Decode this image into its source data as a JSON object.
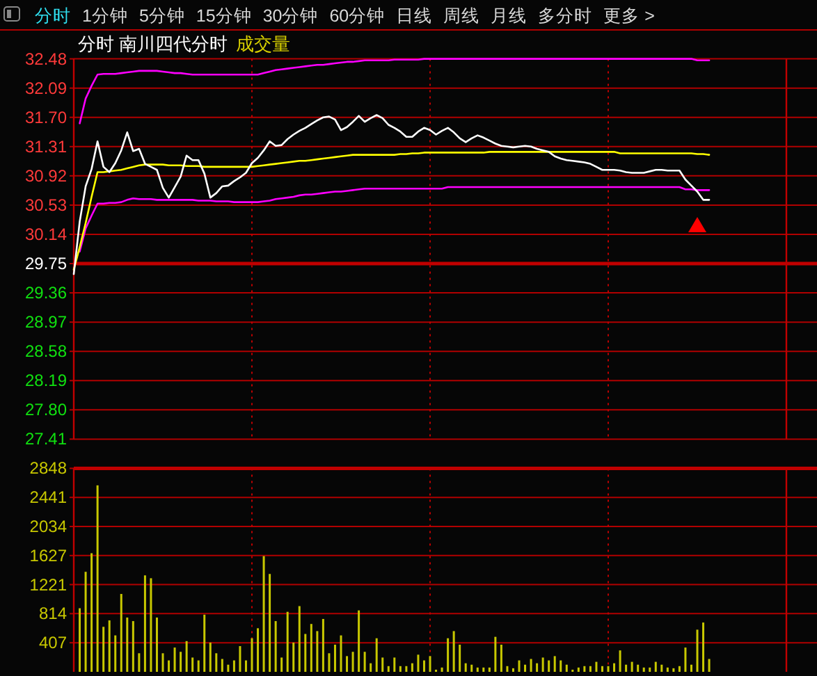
{
  "chart_data": [
    {
      "type": "line",
      "title": "分时 南川四代分时",
      "subtitle": "成交量",
      "annotations": [
        "分时",
        "1分钟",
        "5分钟",
        "15分钟",
        "30分钟",
        "60分钟",
        "日线",
        "周线",
        "月线",
        "多分时",
        "更多 >"
      ],
      "categories": [
        null,
        null,
        null,
        null,
        null,
        null,
        null,
        null,
        null,
        null,
        null,
        null,
        null,
        null,
        null,
        null,
        null,
        null,
        null,
        null,
        null,
        null,
        null,
        null,
        null,
        null,
        null,
        null,
        null,
        null,
        null,
        null,
        null,
        null,
        null,
        null,
        null,
        null,
        null,
        null,
        null,
        null,
        null,
        null,
        null,
        null,
        null,
        null,
        null,
        null,
        null,
        null,
        null,
        null,
        null,
        null,
        null,
        null,
        null,
        null,
        null,
        null,
        null,
        null,
        null,
        null,
        null,
        null,
        null,
        null,
        null,
        null,
        null,
        null,
        null,
        null,
        null,
        null,
        null,
        null,
        null,
        null,
        null,
        null,
        null,
        null,
        null,
        null,
        null,
        null,
        null,
        null,
        null,
        null,
        null,
        null,
        null,
        null,
        null,
        null,
        null,
        null,
        null,
        null,
        null,
        null,
        null,
        null,
        null,
        null,
        null,
        null,
        null,
        null,
        null,
        null,
        null,
        null,
        null,
        null,
        null
      ],
      "ylim": [
        27.41,
        32.48
      ],
      "yticks": [
        27.41,
        {
          "value": 27.8,
          "label": "27.80"
        },
        28.19,
        28.58,
        28.97,
        29.36,
        29.75,
        30.14,
        30.53,
        30.92,
        31.31,
        {
          "value": 31.7,
          "label": "31.70"
        },
        32.09,
        32.48
      ],
      "tick_labels": "y",
      "grid": true,
      "ref_lines": [
        {
          "axis": "y",
          "value": 29.75,
          "color": "#c00000"
        }
      ],
      "series": [
        {
          "color": "#ff00ff",
          "values": [
            null,
            31.62,
            31.95,
            32.12,
            32.27,
            32.28,
            32.28,
            32.28,
            32.29,
            32.3,
            32.31,
            32.32,
            32.32,
            32.32,
            32.32,
            32.31,
            32.3,
            32.29,
            32.29,
            32.28,
            32.27,
            32.27,
            32.27,
            32.27,
            32.27,
            32.27,
            32.27,
            32.27,
            32.27,
            32.27,
            32.27,
            32.27,
            32.29,
            32.31,
            32.33,
            32.34,
            32.35,
            32.36,
            32.37,
            32.38,
            32.39,
            32.4,
            32.4,
            32.41,
            32.42,
            32.43,
            32.44,
            32.44,
            32.45,
            32.46,
            32.46,
            32.46,
            32.46,
            32.46,
            32.47,
            32.47,
            32.47,
            32.47,
            32.47,
            32.48,
            32.48,
            32.48,
            32.48,
            32.48,
            32.48,
            32.48,
            32.48,
            32.48,
            32.48,
            32.48,
            32.48,
            32.48,
            32.48,
            32.48,
            32.48,
            32.48,
            32.48,
            32.48,
            32.48,
            32.48,
            32.48,
            32.48,
            32.48,
            32.48,
            32.48,
            32.48,
            32.48,
            32.48,
            32.48,
            32.48,
            32.48,
            32.48,
            32.48,
            32.48,
            32.48,
            32.48,
            32.48,
            32.48,
            32.48,
            32.48,
            32.48,
            32.48,
            32.48,
            32.48,
            32.48,
            32.46,
            32.46,
            32.46,
            null,
            null,
            null,
            null,
            null,
            null,
            null,
            null,
            null,
            null,
            null,
            null,
            null
          ]
        },
        {
          "color": "#ff00ff",
          "values": [
            null,
            29.91,
            30.22,
            30.39,
            30.55,
            30.55,
            30.56,
            30.56,
            30.57,
            30.6,
            30.62,
            30.61,
            30.61,
            30.61,
            30.6,
            30.6,
            30.6,
            30.6,
            30.6,
            30.6,
            30.6,
            30.59,
            30.59,
            30.59,
            30.58,
            30.58,
            30.58,
            30.57,
            30.57,
            30.57,
            30.57,
            30.57,
            30.58,
            30.59,
            30.61,
            30.62,
            30.63,
            30.64,
            30.66,
            30.67,
            30.67,
            30.68,
            30.69,
            30.7,
            30.71,
            30.71,
            30.72,
            30.73,
            30.74,
            30.75,
            30.75,
            30.75,
            30.75,
            30.75,
            30.75,
            30.75,
            30.75,
            30.75,
            30.75,
            30.75,
            30.75,
            30.75,
            30.75,
            30.77,
            30.77,
            30.77,
            30.77,
            30.77,
            30.77,
            30.77,
            30.77,
            30.77,
            30.77,
            30.77,
            30.77,
            30.77,
            30.77,
            30.77,
            30.77,
            30.77,
            30.77,
            30.77,
            30.77,
            30.77,
            30.77,
            30.77,
            30.77,
            30.77,
            30.77,
            30.77,
            30.77,
            30.77,
            30.77,
            30.77,
            30.77,
            30.77,
            30.77,
            30.77,
            30.77,
            30.77,
            30.77,
            30.77,
            30.77,
            30.74,
            30.74,
            30.73,
            30.73,
            30.73,
            null,
            null,
            null,
            null,
            null,
            null,
            null,
            null,
            null,
            null,
            null,
            null,
            null
          ]
        },
        {
          "color": "#ffff00",
          "values": [
            29.67,
            29.97,
            30.29,
            30.64,
            30.97,
            30.97,
            30.98,
            30.99,
            31.0,
            31.02,
            31.04,
            31.06,
            31.07,
            31.07,
            31.07,
            31.07,
            31.06,
            31.06,
            31.06,
            31.05,
            31.05,
            31.05,
            31.04,
            31.04,
            31.04,
            31.04,
            31.04,
            31.04,
            31.04,
            31.04,
            31.04,
            31.05,
            31.06,
            31.07,
            31.08,
            31.09,
            31.1,
            31.11,
            31.12,
            31.12,
            31.13,
            31.14,
            31.15,
            31.16,
            31.17,
            31.18,
            31.19,
            31.2,
            31.2,
            31.2,
            31.2,
            31.2,
            31.2,
            31.2,
            31.2,
            31.21,
            31.21,
            31.22,
            31.22,
            31.23,
            31.23,
            31.23,
            31.23,
            31.23,
            31.23,
            31.23,
            31.23,
            31.23,
            31.23,
            31.23,
            31.24,
            31.24,
            31.24,
            31.24,
            31.24,
            31.24,
            31.24,
            31.24,
            31.24,
            31.24,
            31.24,
            31.24,
            31.24,
            31.24,
            31.24,
            31.24,
            31.24,
            31.24,
            31.24,
            31.24,
            31.24,
            31.24,
            31.22,
            31.22,
            31.22,
            31.22,
            31.22,
            31.22,
            31.22,
            31.22,
            31.22,
            31.22,
            31.22,
            31.22,
            31.22,
            31.21,
            31.21,
            31.2,
            null,
            null,
            null,
            null,
            null,
            null,
            null,
            null,
            null,
            null,
            null,
            null,
            null
          ]
        },
        {
          "color": "#ffffff",
          "values": [
            29.61,
            30.31,
            30.78,
            31.01,
            31.38,
            31.04,
            30.97,
            31.09,
            31.26,
            31.5,
            31.25,
            31.28,
            31.08,
            31.04,
            31.0,
            30.76,
            30.63,
            30.77,
            30.91,
            31.19,
            31.13,
            31.13,
            30.95,
            30.63,
            30.69,
            30.78,
            30.79,
            30.85,
            30.9,
            30.96,
            31.09,
            31.16,
            31.26,
            31.38,
            31.32,
            31.33,
            31.41,
            31.47,
            31.52,
            31.56,
            31.61,
            31.66,
            31.7,
            31.71,
            31.67,
            31.53,
            31.57,
            31.64,
            31.72,
            31.64,
            31.69,
            31.73,
            31.69,
            31.6,
            31.56,
            31.51,
            31.44,
            31.44,
            31.51,
            31.56,
            31.53,
            31.47,
            31.52,
            31.56,
            31.5,
            31.42,
            31.37,
            31.42,
            31.46,
            31.43,
            31.39,
            31.35,
            31.32,
            31.31,
            31.3,
            31.31,
            31.32,
            31.31,
            31.28,
            31.26,
            31.24,
            31.18,
            31.15,
            31.13,
            31.12,
            31.11,
            31.1,
            31.08,
            31.04,
            31.0,
            31.0,
            31.0,
            30.99,
            30.97,
            30.96,
            30.96,
            30.96,
            30.98,
            31.0,
            31.0,
            30.99,
            30.99,
            30.99,
            30.87,
            30.79,
            30.71,
            30.6,
            30.6,
            null,
            null,
            null,
            null,
            null,
            null,
            null,
            null,
            null,
            null,
            null,
            null,
            null
          ]
        },
        {
          "type": "scatter",
          "marker": "triangle",
          "color": "#ff0000",
          "values": [
            null,
            null,
            null,
            null,
            null,
            null,
            null,
            null,
            null,
            null,
            null,
            null,
            null,
            null,
            null,
            null,
            null,
            null,
            null,
            null,
            null,
            null,
            null,
            null,
            null,
            null,
            null,
            null,
            null,
            null,
            null,
            null,
            null,
            null,
            null,
            null,
            null,
            null,
            null,
            null,
            null,
            null,
            null,
            null,
            null,
            null,
            null,
            null,
            null,
            null,
            null,
            null,
            null,
            null,
            null,
            null,
            null,
            null,
            null,
            null,
            null,
            null,
            null,
            null,
            null,
            null,
            null,
            null,
            null,
            null,
            null,
            null,
            null,
            null,
            null,
            null,
            null,
            null,
            null,
            null,
            null,
            null,
            null,
            null,
            null,
            null,
            null,
            null,
            null,
            null,
            null,
            null,
            null,
            null,
            null,
            null,
            null,
            null,
            null,
            null,
            null,
            null,
            null,
            null,
            null,
            30.26,
            null,
            null,
            null,
            null,
            null,
            null,
            null,
            null,
            null,
            null,
            null,
            null,
            null,
            null,
            null
          ]
        }
      ]
    },
    {
      "type": "bar",
      "color": "#c8c800",
      "categories": [
        null,
        null,
        null,
        null,
        null,
        null,
        null,
        null,
        null,
        null,
        null,
        null,
        null,
        null,
        null,
        null,
        null,
        null,
        null,
        null,
        null,
        null,
        null,
        null,
        null,
        null,
        null,
        null,
        null,
        null,
        null,
        null,
        null,
        null,
        null,
        null,
        null,
        null,
        null,
        null,
        null,
        null,
        null,
        null,
        null,
        null,
        null,
        null,
        null,
        null,
        null,
        null,
        null,
        null,
        null,
        null,
        null,
        null,
        null,
        null,
        null,
        null,
        null,
        null,
        null,
        null,
        null,
        null,
        null,
        null,
        null,
        null,
        null,
        null,
        null,
        null,
        null,
        null,
        null,
        null,
        null,
        null,
        null,
        null,
        null,
        null,
        null,
        null,
        null,
        null,
        null,
        null,
        null,
        null,
        null,
        null,
        null,
        null,
        null,
        null,
        null,
        null,
        null,
        null,
        null,
        null,
        null,
        null,
        null,
        null,
        null,
        null,
        null,
        null,
        null,
        null,
        null,
        null,
        null,
        null,
        null
      ],
      "ylim": [
        0,
        2848
      ],
      "yticks": [
        407,
        814,
        1221,
        1627,
        2034,
        2441,
        2848
      ],
      "tick_labels": "y",
      "grid": true,
      "values": [
        null,
        890,
        1400,
        1660,
        2610,
        630,
        720,
        510,
        1090,
        760,
        710,
        260,
        1350,
        1310,
        760,
        260,
        160,
        340,
        280,
        430,
        200,
        160,
        800,
        410,
        260,
        180,
        100,
        160,
        360,
        160,
        470,
        610,
        1620,
        1370,
        710,
        200,
        840,
        410,
        920,
        530,
        670,
        570,
        740,
        260,
        380,
        510,
        220,
        280,
        860,
        280,
        120,
        470,
        200,
        80,
        200,
        80,
        80,
        120,
        240,
        160,
        220,
        30,
        60,
        470,
        570,
        380,
        120,
        100,
        60,
        60,
        60,
        490,
        380,
        80,
        50,
        160,
        100,
        180,
        120,
        200,
        160,
        220,
        160,
        100,
        30,
        60,
        80,
        80,
        140,
        80,
        80,
        120,
        300,
        100,
        140,
        100,
        60,
        60,
        140,
        100,
        60,
        50,
        80,
        340,
        100,
        590,
        690,
        180,
        null,
        null,
        null,
        null,
        null,
        null,
        null,
        null,
        null,
        null,
        null,
        null,
        null
      ]
    }
  ]
}
